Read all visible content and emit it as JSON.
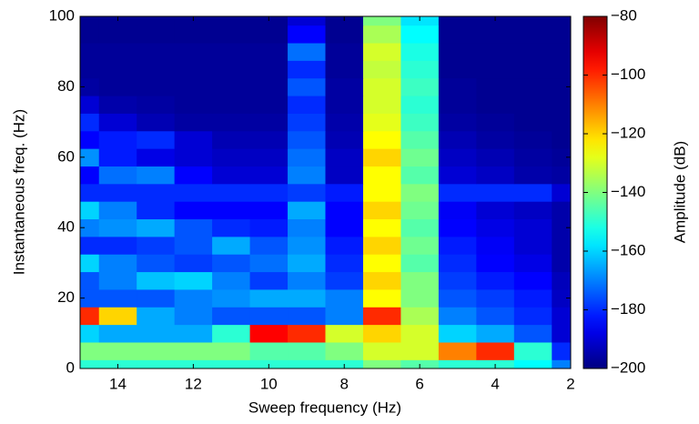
{
  "chart_data": {
    "type": "heatmap",
    "xlabel": "Sweep frequency (Hz)",
    "ylabel": "Instantaneous freq. (Hz)",
    "colorbar_label": "Amplitude (dB)",
    "colormap": "jet",
    "x": [
      15,
      14,
      13,
      12,
      11,
      10,
      9,
      8,
      7,
      6,
      5,
      4,
      3,
      2
    ],
    "y": [
      0,
      5,
      10,
      15,
      20,
      25,
      30,
      35,
      40,
      45,
      50,
      55,
      60,
      65,
      70,
      75,
      80,
      85,
      90,
      95,
      100
    ],
    "z": [
      [
        -150,
        -150,
        -150,
        -150,
        -150,
        -150,
        -150,
        -150,
        -140,
        -145,
        -150,
        -150,
        -155,
        -170
      ],
      [
        -140,
        -140,
        -140,
        -140,
        -140,
        -145,
        -145,
        -140,
        -130,
        -130,
        -110,
        -100,
        -150,
        -180
      ],
      [
        -160,
        -165,
        -165,
        -165,
        -150,
        -95,
        -100,
        -130,
        -120,
        -130,
        -160,
        -165,
        -175,
        -190
      ],
      [
        -100,
        -120,
        -165,
        -170,
        -175,
        -175,
        -175,
        -170,
        -100,
        -135,
        -170,
        -175,
        -180,
        -190
      ],
      [
        -175,
        -175,
        -175,
        -170,
        -168,
        -165,
        -165,
        -170,
        -125,
        -140,
        -175,
        -178,
        -182,
        -192
      ],
      [
        -175,
        -170,
        -162,
        -160,
        -170,
        -178,
        -170,
        -178,
        -120,
        -140,
        -178,
        -182,
        -185,
        -193
      ],
      [
        -160,
        -170,
        -175,
        -178,
        -175,
        -172,
        -165,
        -180,
        -125,
        -145,
        -180,
        -185,
        -188,
        -195
      ],
      [
        -180,
        -180,
        -178,
        -175,
        -165,
        -175,
        -168,
        -182,
        -120,
        -142,
        -182,
        -186,
        -190,
        -195
      ],
      [
        -170,
        -168,
        -165,
        -175,
        -180,
        -182,
        -170,
        -185,
        -125,
        -145,
        -185,
        -188,
        -190,
        -195
      ],
      [
        -160,
        -170,
        -180,
        -185,
        -185,
        -185,
        -165,
        -185,
        -120,
        -142,
        -186,
        -190,
        -192,
        -195
      ],
      [
        -180,
        -180,
        -180,
        -180,
        -180,
        -180,
        -178,
        -182,
        -125,
        -140,
        -180,
        -180,
        -180,
        -190
      ],
      [
        -185,
        -172,
        -170,
        -185,
        -190,
        -190,
        -170,
        -192,
        -125,
        -145,
        -190,
        -192,
        -195,
        -196
      ],
      [
        -168,
        -182,
        -188,
        -190,
        -192,
        -192,
        -172,
        -192,
        -120,
        -142,
        -192,
        -194,
        -196,
        -197
      ],
      [
        -185,
        -182,
        -180,
        -190,
        -194,
        -194,
        -175,
        -194,
        -125,
        -145,
        -194,
        -196,
        -197,
        -198
      ],
      [
        -180,
        -190,
        -194,
        -196,
        -196,
        -196,
        -178,
        -195,
        -128,
        -148,
        -196,
        -197,
        -198,
        -198
      ],
      [
        -190,
        -195,
        -196,
        -197,
        -197,
        -197,
        -180,
        -196,
        -130,
        -150,
        -197,
        -198,
        -198,
        -198
      ],
      [
        -196,
        -197,
        -197,
        -197,
        -197,
        -197,
        -175,
        -196,
        -130,
        -148,
        -197,
        -198,
        -198,
        -198
      ],
      [
        -197,
        -197,
        -197,
        -197,
        -197,
        -197,
        -180,
        -197,
        -132,
        -150,
        -198,
        -198,
        -198,
        -198
      ],
      [
        -197,
        -197,
        -197,
        -197,
        -197,
        -197,
        -172,
        -197,
        -130,
        -152,
        -198,
        -198,
        -198,
        -198
      ],
      [
        -198,
        -198,
        -198,
        -198,
        -198,
        -198,
        -185,
        -198,
        -135,
        -155,
        -198,
        -198,
        -198,
        -198
      ],
      [
        -198,
        -198,
        -198,
        -198,
        -198,
        -198,
        -190,
        -198,
        -140,
        -158,
        -198,
        -198,
        -198,
        -198
      ]
    ],
    "xlim": [
      15,
      2
    ],
    "xticks": [
      14,
      12,
      10,
      8,
      6,
      4,
      2
    ],
    "ylim": [
      0,
      100
    ],
    "yticks": [
      0,
      20,
      40,
      60,
      80,
      100
    ],
    "clim": [
      -200,
      -80
    ],
    "cticks": [
      {
        "value": -80,
        "label": "−80"
      },
      {
        "value": -100,
        "label": "−100"
      },
      {
        "value": -120,
        "label": "−120"
      },
      {
        "value": -140,
        "label": "−140"
      },
      {
        "value": -160,
        "label": "−160"
      },
      {
        "value": -180,
        "label": "−180"
      },
      {
        "value": -200,
        "label": "−200"
      }
    ]
  }
}
